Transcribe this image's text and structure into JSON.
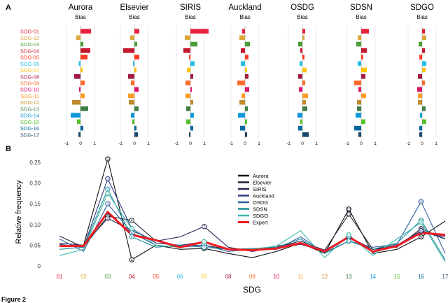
{
  "figure_caption": "Figure 2",
  "chart_data": [
    {
      "panel": "A",
      "type": "bar",
      "orientation": "horizontal",
      "subtitle": "Bias",
      "categories": [
        "SDG-01",
        "SDG-02",
        "SDG-03",
        "SDG-04",
        "SDG-05",
        "SDG-06",
        "SDG-07",
        "SDG-08",
        "SDG-09",
        "SDG-10",
        "SDG-11",
        "SDG-12",
        "SDG-13",
        "SDG-14",
        "SDG-15",
        "SDG-16",
        "SDG-17"
      ],
      "category_colors": [
        "#e5243b",
        "#dda63a",
        "#4c9f38",
        "#c5192d",
        "#ff3a21",
        "#26bde2",
        "#fcc30b",
        "#a21942",
        "#fd6925",
        "#dd1367",
        "#fd9d24",
        "#bf8b2e",
        "#3f7e44",
        "#0a97d9",
        "#56c02b",
        "#00689d",
        "#19486a"
      ],
      "xlim": [
        -1.4,
        1.4
      ],
      "xticks": [
        "-1",
        "0",
        "1"
      ],
      "panels": [
        {
          "title": "Aurora",
          "values": [
            0.75,
            -0.3,
            0.2,
            0.7,
            0.5,
            -0.12,
            0.15,
            -0.45,
            0.3,
            -0.1,
            0.3,
            -0.6,
            0.55,
            -0.7,
            -0.25,
            0.2,
            -0.15
          ]
        },
        {
          "title": "Elsevier",
          "values": [
            0.35,
            -0.3,
            0.2,
            -0.8,
            0.35,
            -0.1,
            0.15,
            -0.45,
            -0.25,
            0.3,
            -0.45,
            -0.4,
            0.3,
            -0.25,
            -0.15,
            0.15,
            0.25
          ]
        },
        {
          "title": "SIRIS",
          "values": [
            1.3,
            -0.4,
            0.5,
            -0.5,
            -0.1,
            0.3,
            -0.25,
            0.2,
            -0.35,
            0.1,
            -0.35,
            0.2,
            -0.3,
            0.25,
            -0.3,
            0.2,
            -0.1
          ]
        },
        {
          "title": "Auckland",
          "values": [
            -0.2,
            -0.4,
            0.35,
            -0.3,
            0.25,
            -0.3,
            0.15,
            0.25,
            -0.55,
            0.3,
            -0.25,
            -0.4,
            0.2,
            -0.5,
            0.15,
            -0.35,
            0.15
          ]
        },
        {
          "title": "OSDG",
          "values": [
            0.2,
            0.15,
            -0.3,
            -0.15,
            0.15,
            -0.2,
            0.3,
            -0.3,
            0.2,
            -0.25,
            0.4,
            0.25,
            0.35,
            -0.35,
            -0.15,
            -0.3,
            0.45
          ]
        },
        {
          "title": "SDSN",
          "values": [
            0.55,
            -0.25,
            -0.35,
            0.4,
            0.15,
            -0.25,
            0.4,
            0.3,
            -0.5,
            -0.2,
            0.35,
            -0.3,
            -0.3,
            -0.4,
            0.3,
            -0.5,
            -0.2
          ]
        },
        {
          "title": "SDGO",
          "values": [
            0.2,
            0.3,
            -0.25,
            0.2,
            -0.2,
            0.3,
            0.25,
            -0.3,
            0.2,
            -0.35,
            -0.3,
            -0.3,
            0.25,
            -0.15,
            0.3,
            -0.2,
            -0.2
          ]
        }
      ]
    },
    {
      "panel": "B",
      "type": "line",
      "xlabel": "SDG",
      "ylabel": "Relative frequency",
      "ylim": [
        0,
        0.26
      ],
      "yticks": [
        "0",
        "0.05",
        "0.10",
        "0.15",
        "0.20",
        "0.25"
      ],
      "categories": [
        "01",
        "02",
        "03",
        "04",
        "05",
        "06",
        "07",
        "08",
        "09",
        "10",
        "11",
        "12",
        "13",
        "14",
        "15",
        "16",
        "17"
      ],
      "category_colors": [
        "#e5243b",
        "#dda63a",
        "#4c9f38",
        "#c5192d",
        "#ff3a21",
        "#26bde2",
        "#fcc30b",
        "#a21942",
        "#fd6925",
        "#dd1367",
        "#fd9d24",
        "#bf8b2e",
        "#3f7e44",
        "#0a97d9",
        "#56c02b",
        "#00689d",
        "#19486a"
      ],
      "series": [
        {
          "name": "Aurora",
          "color": "#111111",
          "values": [
            0.048,
            0.05,
            0.258,
            0.015,
            0.05,
            0.04,
            0.042,
            0.03,
            0.02,
            0.035,
            0.055,
            0.03,
            0.137,
            0.03,
            0.04,
            0.07,
            0.108
          ]
        },
        {
          "name": "Elsevier",
          "color": "#222233",
          "values": [
            0.072,
            0.045,
            0.12,
            0.11,
            0.06,
            0.048,
            0.05,
            0.04,
            0.037,
            0.048,
            0.055,
            0.038,
            0.125,
            0.04,
            0.045,
            0.09,
            0.065
          ]
        },
        {
          "name": "SIRIS",
          "color": "#2a2350",
          "values": [
            0.055,
            0.05,
            0.115,
            0.085,
            0.06,
            0.07,
            0.095,
            0.045,
            0.035,
            0.045,
            0.06,
            0.038,
            0.07,
            0.04,
            0.05,
            0.085,
            0.065
          ]
        },
        {
          "name": "Auckland",
          "color": "#2c3b7c",
          "values": [
            0.052,
            0.045,
            0.21,
            0.09,
            0.055,
            0.05,
            0.058,
            0.04,
            0.038,
            0.042,
            0.052,
            0.035,
            0.07,
            0.033,
            0.048,
            0.085,
            0.07
          ]
        },
        {
          "name": "OSDG",
          "color": "#2f5f9b",
          "values": [
            0.065,
            0.035,
            0.15,
            0.08,
            0.05,
            0.045,
            0.05,
            0.035,
            0.04,
            0.04,
            0.07,
            0.032,
            0.06,
            0.045,
            0.052,
            0.155,
            0.03
          ]
        },
        {
          "name": "SDSN",
          "color": "#218b9b",
          "values": [
            0.04,
            0.045,
            0.185,
            0.07,
            0.045,
            0.05,
            0.045,
            0.04,
            0.042,
            0.045,
            0.065,
            0.03,
            0.06,
            0.04,
            0.055,
            0.11,
            0.015
          ]
        },
        {
          "name": "SDGO",
          "color": "#3db8a8",
          "values": [
            0.025,
            0.04,
            0.175,
            0.09,
            0.05,
            0.045,
            0.058,
            0.04,
            0.04,
            0.048,
            0.085,
            0.02,
            0.075,
            0.025,
            0.065,
            0.105,
            0.01
          ]
        },
        {
          "name": "Expert",
          "color": "#ee1c24",
          "values": [
            0.048,
            0.048,
            0.13,
            0.075,
            0.062,
            0.045,
            0.058,
            0.04,
            0.038,
            0.042,
            0.055,
            0.035,
            0.07,
            0.035,
            0.048,
            0.08,
            0.075
          ]
        }
      ]
    }
  ]
}
